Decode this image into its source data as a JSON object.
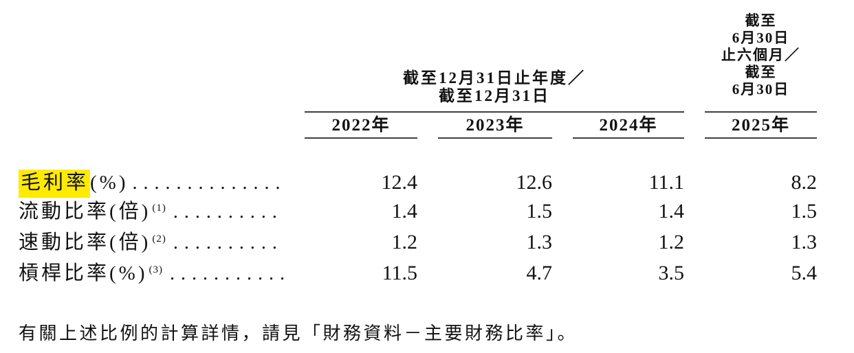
{
  "table": {
    "group_header_line1": "截至12月31日止年度／",
    "group_header_line2": "截至12月31日",
    "col4_header_lines": [
      "截至",
      "6月30日",
      "止六個月／",
      "截至",
      "6月30日"
    ],
    "year_headers": [
      "2022年",
      "2023年",
      "2024年",
      "2025年"
    ],
    "rows": [
      {
        "highlight": "毛利率",
        "label": "(%)",
        "sup": "",
        "values": [
          "12.4",
          "12.6",
          "11.1",
          "8.2"
        ]
      },
      {
        "highlight": "",
        "label": "流動比率(倍)",
        "sup": "(1)",
        "values": [
          "1.4",
          "1.5",
          "1.4",
          "1.5"
        ]
      },
      {
        "highlight": "",
        "label": "速動比率(倍)",
        "sup": "(2)",
        "values": [
          "1.2",
          "1.3",
          "1.2",
          "1.3"
        ]
      },
      {
        "highlight": "",
        "label": "槓桿比率(%)",
        "sup": "(3)",
        "values": [
          "11.5",
          "4.7",
          "3.5",
          "5.4"
        ]
      }
    ],
    "leader_dots": "........................................"
  },
  "footer": "有關上述比例的計算詳情，請見「財務資料－主要財務比率」。",
  "colors": {
    "highlight": "#ffeb00",
    "rule": "#3f3f3f",
    "text": "#111111"
  }
}
